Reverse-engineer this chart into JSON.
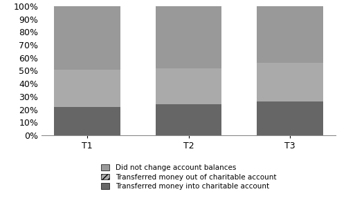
{
  "categories": [
    "T1",
    "T2",
    "T3"
  ],
  "into_charitable": [
    0.22,
    0.24,
    0.26
  ],
  "out_of_charitable": [
    0.29,
    0.28,
    0.3
  ],
  "did_not_change": [
    0.49,
    0.48,
    0.44
  ],
  "color_into": "#666666",
  "color_out": "#aaaaaa",
  "color_no_change": "#999999",
  "hatch_out": "////",
  "ylabel_ticks": [
    "0%",
    "10%",
    "20%",
    "30%",
    "40%",
    "50%",
    "60%",
    "70%",
    "80%",
    "90%",
    "100%"
  ],
  "ytick_vals": [
    0.0,
    0.1,
    0.2,
    0.3,
    0.4,
    0.5,
    0.6,
    0.7,
    0.8,
    0.9,
    1.0
  ],
  "legend_did_not": "Did not change account balances",
  "legend_out": "Transferred money out of charitable account",
  "legend_into": "Transferred money into charitable account",
  "bar_width": 0.65,
  "figsize": [
    5.0,
    2.97
  ],
  "dpi": 100,
  "x_positions": [
    0,
    1,
    2
  ],
  "xlim": [
    -0.45,
    2.45
  ]
}
